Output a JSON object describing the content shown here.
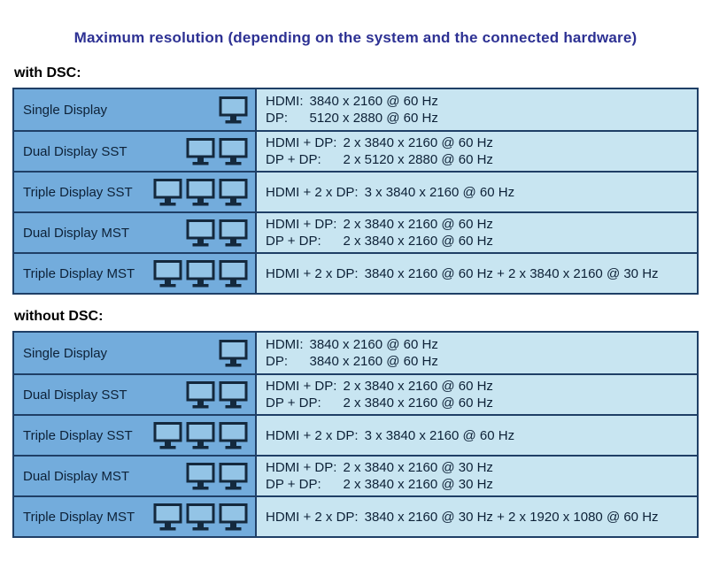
{
  "title": "Maximum resolution (depending on the system and the connected hardware)",
  "colors": {
    "title-text": "#2d3193",
    "heading-text": "#000000",
    "table-border": "#1f3f66",
    "left-cell-bg": "#73acdc",
    "right-cell-bg": "#c8e5f1",
    "cell-text": "#0d2137",
    "icon-outline": "#14293d",
    "icon-screen": "#93c4e6",
    "page-bg": "#ffffff"
  },
  "icons": {
    "monitor": "monitor-icon"
  },
  "sections": [
    {
      "heading": "with DSC:",
      "rows": [
        {
          "label": "Single Display",
          "monitors": 1,
          "lines": [
            {
              "label": "HDMI:",
              "value": "3840 x 2160 @ 60 Hz"
            },
            {
              "label": "DP:",
              "value": "5120 x 2880 @ 60 Hz"
            }
          ]
        },
        {
          "label": "Dual Display SST",
          "monitors": 2,
          "lines": [
            {
              "label": "HDMI + DP:",
              "value": "2 x 3840 x 2160 @ 60 Hz"
            },
            {
              "label": "DP + DP:",
              "value": "2 x 5120 x 2880 @ 60 Hz"
            }
          ]
        },
        {
          "label": "Triple Display SST",
          "monitors": 3,
          "lines": [
            {
              "label": "HDMI + 2 x DP:",
              "value": "3 x 3840 x 2160 @ 60 Hz"
            }
          ]
        },
        {
          "label": "Dual Display MST",
          "monitors": 2,
          "lines": [
            {
              "label": "HDMI + DP:",
              "value": "2 x 3840 x 2160 @ 60 Hz"
            },
            {
              "label": "DP + DP:",
              "value": "2 x 3840 x 2160 @ 60 Hz"
            }
          ]
        },
        {
          "label": "Triple Display MST",
          "monitors": 3,
          "lines": [
            {
              "label": "HDMI + 2 x DP:",
              "value": "3840 x 2160 @ 60 Hz + 2 x 3840 x 2160 @ 30 Hz"
            }
          ]
        }
      ]
    },
    {
      "heading": "without DSC:",
      "rows": [
        {
          "label": "Single Display",
          "monitors": 1,
          "lines": [
            {
              "label": "HDMI:",
              "value": "3840 x 2160 @ 60 Hz"
            },
            {
              "label": "DP:",
              "value": "3840 x 2160 @ 60 Hz"
            }
          ]
        },
        {
          "label": "Dual Display SST",
          "monitors": 2,
          "lines": [
            {
              "label": "HDMI + DP:",
              "value": "2 x 3840 x 2160 @ 60 Hz"
            },
            {
              "label": "DP + DP:",
              "value": "2 x 3840 x 2160 @ 60 Hz"
            }
          ]
        },
        {
          "label": "Triple Display SST",
          "monitors": 3,
          "lines": [
            {
              "label": "HDMI + 2 x DP:",
              "value": "3 x 3840 x 2160 @ 60 Hz"
            }
          ]
        },
        {
          "label": "Dual Display MST",
          "monitors": 2,
          "lines": [
            {
              "label": "HDMI + DP:",
              "value": "2 x 3840 x 2160 @ 30 Hz"
            },
            {
              "label": "DP + DP:",
              "value": "2 x 3840 x 2160 @ 30 Hz"
            }
          ]
        },
        {
          "label": "Triple Display MST",
          "monitors": 3,
          "lines": [
            {
              "label": "HDMI + 2 x DP:",
              "value": "3840 x 2160 @ 30 Hz + 2 x 1920 x 1080 @ 60 Hz"
            }
          ]
        }
      ]
    }
  ]
}
